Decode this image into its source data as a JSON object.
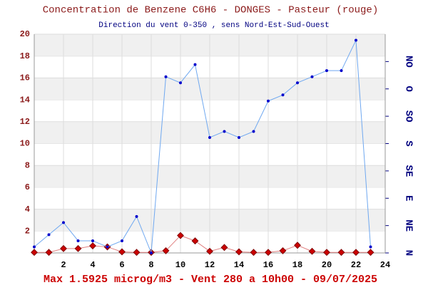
{
  "chart_data": {
    "type": "line",
    "title": "Concentration de Benzene C6H6  -   DONGES - Pasteur (rouge)",
    "subtitle": "Direction du vent 0-350 , sens Nord-Est-Sud-Ouest",
    "footer": "Max 1.5925 microg/m3 - Vent 280  a 10h00 - 09/07/2025",
    "x": [
      0,
      1,
      2,
      3,
      4,
      5,
      6,
      7,
      8,
      9,
      10,
      11,
      12,
      13,
      14,
      15,
      16,
      17,
      18,
      19,
      20,
      21,
      22,
      23
    ],
    "xlim": [
      0,
      24
    ],
    "xticks": [
      2,
      4,
      6,
      8,
      10,
      12,
      14,
      16,
      18,
      20,
      22,
      24
    ],
    "ylim": [
      0,
      20
    ],
    "yticks": [
      2,
      4,
      6,
      8,
      10,
      12,
      14,
      16,
      18,
      20
    ],
    "y2lim": [
      0,
      360
    ],
    "y2ticks": [
      {
        "value": 0,
        "label": "N"
      },
      {
        "value": 45,
        "label": "NE"
      },
      {
        "value": 90,
        "label": "E"
      },
      {
        "value": 135,
        "label": "SE"
      },
      {
        "value": 180,
        "label": "S"
      },
      {
        "value": 225,
        "label": "SO"
      },
      {
        "value": 270,
        "label": "O"
      },
      {
        "value": 315,
        "label": "NO"
      }
    ],
    "grid": true,
    "series": [
      {
        "name": "Benzene",
        "color": "#cc0000",
        "values": [
          0.05,
          0.05,
          0.4,
          0.4,
          0.65,
          0.55,
          0.1,
          0.05,
          0.05,
          0.2,
          1.5925,
          1.1,
          0.15,
          0.5,
          0.1,
          0.05,
          0.05,
          0.2,
          0.7,
          0.15,
          0.05,
          0.05,
          0.05,
          0.05
        ]
      },
      {
        "name": "Vent",
        "color": "#0000cc",
        "axis": "y2",
        "values": [
          10,
          30,
          50,
          20,
          20,
          10,
          20,
          60,
          0,
          290,
          280,
          310,
          190,
          200,
          190,
          200,
          250,
          260,
          280,
          290,
          300,
          300,
          350,
          10
        ]
      }
    ]
  }
}
